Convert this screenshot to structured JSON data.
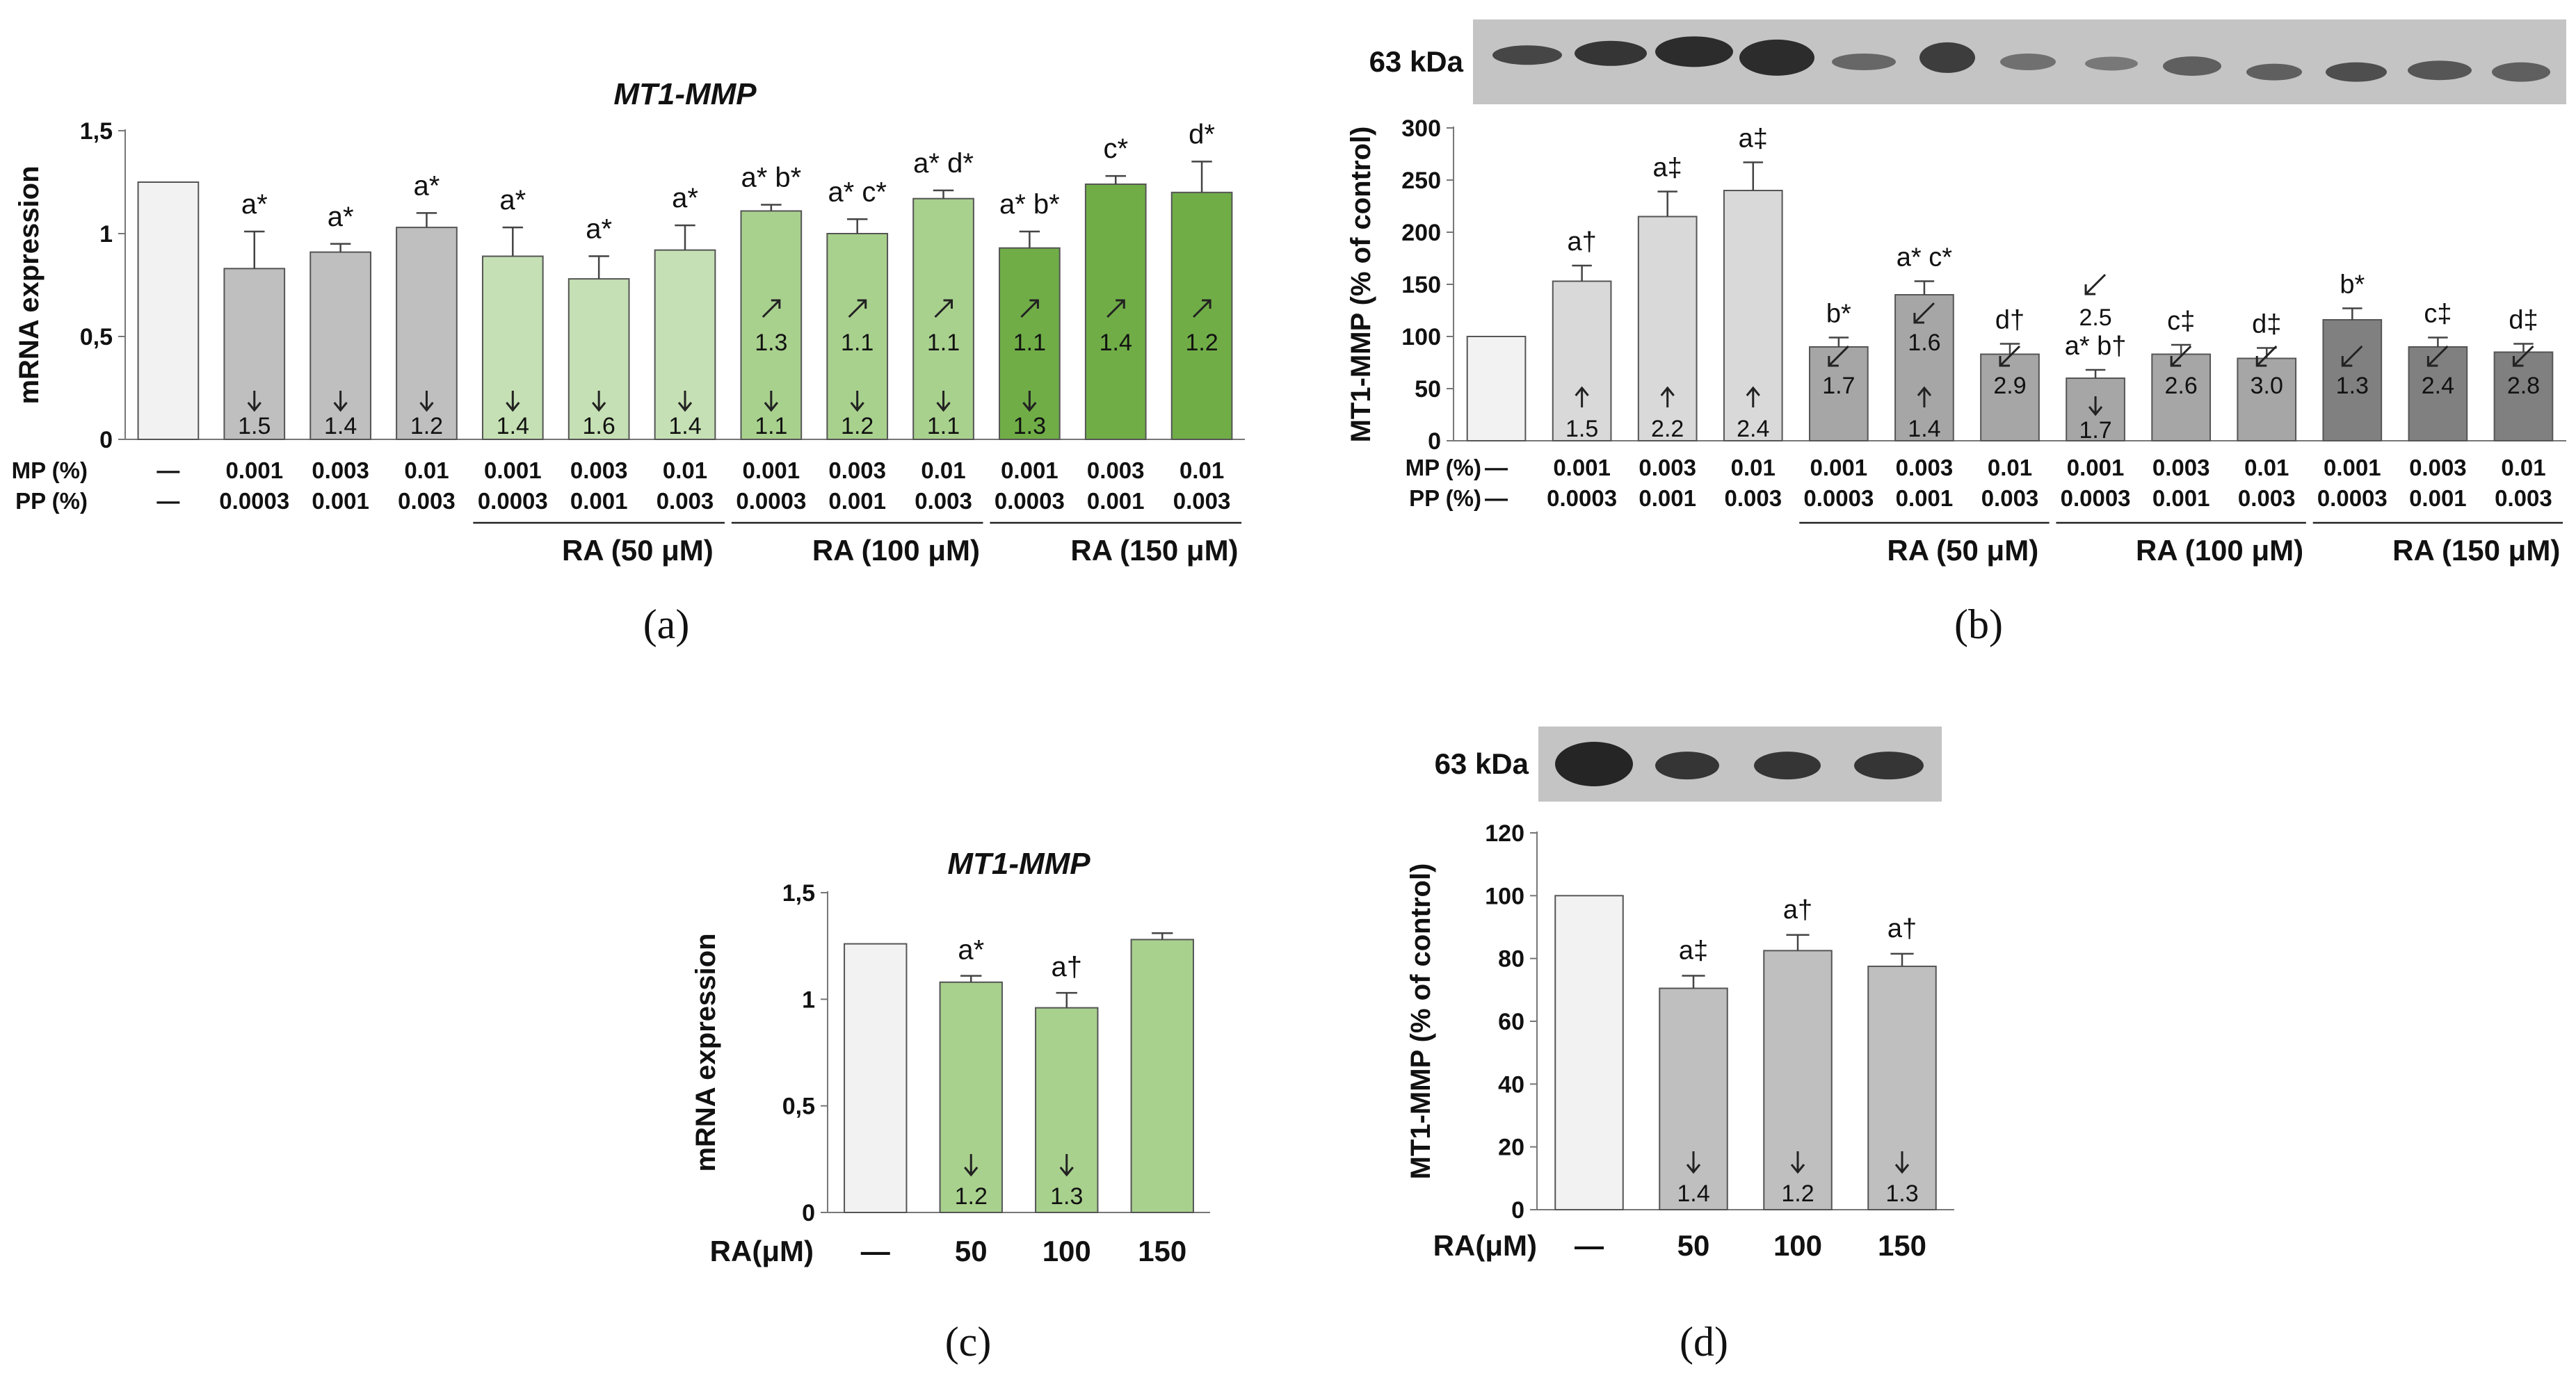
{
  "colors": {
    "control": "#f2f2f2",
    "grey": "#bfbfbf",
    "light_green": "#c5e0b4",
    "mid_green": "#a9d18e",
    "dark_green": "#70ad47",
    "light_grey": "#d9d9d9",
    "mid_grey": "#a6a6a6",
    "dark_grey": "#808080",
    "outline": "#555555",
    "blot_bg": "#c4c4c4",
    "band": "#1c1c1c"
  },
  "chart_data": [
    {
      "panel": "a",
      "type": "bar",
      "title": "MT1-MMP",
      "ylabel": "mRNA expression",
      "ylim": [
        0,
        1.5
      ],
      "yticks": [
        "0",
        "0,5",
        "1",
        "1,5"
      ],
      "categories": [
        "control",
        "MP 0.001 / PP 0.0003",
        "MP 0.003 / PP 0.001",
        "MP 0.01 / PP 0.003",
        "RA 50 + 0.001",
        "RA 50 + 0.003",
        "RA 50 + 0.01",
        "RA 100 + 0.001",
        "RA 100 + 0.003",
        "RA 100 + 0.01",
        "RA 150 + 0.001",
        "RA 150 + 0.003",
        "RA 150 + 0.01"
      ],
      "values": [
        1.25,
        0.83,
        0.91,
        1.03,
        0.89,
        0.78,
        0.92,
        1.11,
        1.0,
        1.17,
        0.93,
        1.24,
        1.2
      ],
      "errors": [
        0,
        0.18,
        0.04,
        0.07,
        0.14,
        0.11,
        0.12,
        0.03,
        0.07,
        0.04,
        0.08,
        0.04,
        0.15
      ],
      "colors": [
        "control",
        "grey",
        "grey",
        "grey",
        "light_green",
        "light_green",
        "light_green",
        "mid_green",
        "mid_green",
        "mid_green",
        "dark_green",
        "dark_green",
        "dark_green"
      ],
      "sig": [
        "",
        "a*",
        "a*",
        "a*",
        "a*",
        "a*",
        "a*",
        "a* b*",
        "a* c*",
        "a* d*",
        "a* b*",
        "c*",
        "d*"
      ],
      "fold_down": [
        "",
        "1.5",
        "1.4",
        "1.2",
        "1.4",
        "1.6",
        "1.4",
        "1.1",
        "1.2",
        "1.1",
        "1.3",
        "",
        ""
      ],
      "fold_up": [
        "",
        "",
        "",
        "",
        "",
        "",
        "",
        "1.3",
        "1.1",
        "1.1",
        "1.1",
        "1.4",
        "1.2"
      ],
      "rows": [
        {
          "label": "MP (%)",
          "values": [
            "—",
            "0.001",
            "0.003",
            "0.01",
            "0.001",
            "0.003",
            "0.01",
            "0.001",
            "0.003",
            "0.01",
            "0.001",
            "0.003",
            "0.01"
          ]
        },
        {
          "label": "PP (%)",
          "values": [
            "—",
            "0.0003",
            "0.001",
            "0.003",
            "0.0003",
            "0.001",
            "0.003",
            "0.0003",
            "0.001",
            "0.003",
            "0.0003",
            "0.001",
            "0.003"
          ]
        }
      ],
      "groups": [
        "RA (50 μM)",
        "RA (100 μM)",
        "RA (150 μM)"
      ],
      "panel_label": "(a)"
    },
    {
      "panel": "b",
      "type": "bar",
      "ylabel": "MT1-MMP (% of control)",
      "ylim": [
        0,
        300
      ],
      "yticks": [
        "0",
        "50",
        "100",
        "150",
        "200",
        "250",
        "300"
      ],
      "blot_label": "63 kDa",
      "categories": [
        "control",
        "MP 0.001 / PP 0.0003",
        "MP 0.003 / PP 0.001",
        "MP 0.01 / PP 0.003",
        "RA 50 + 0.001",
        "RA 50 + 0.003",
        "RA 50 + 0.01",
        "RA 100 + 0.001",
        "RA 100 + 0.003",
        "RA 100 + 0.01",
        "RA 150 + 0.001",
        "RA 150 + 0.003",
        "RA 150 + 0.01"
      ],
      "values": [
        100,
        153,
        215,
        240,
        90,
        140,
        83,
        60,
        83,
        79,
        116,
        90,
        85
      ],
      "errors": [
        0,
        15,
        24,
        27,
        9,
        13,
        10,
        8,
        9,
        10,
        11,
        9,
        8
      ],
      "colors": [
        "control",
        "light_grey",
        "light_grey",
        "light_grey",
        "mid_grey",
        "mid_grey",
        "mid_grey",
        "mid_grey",
        "mid_grey",
        "mid_grey",
        "dark_grey",
        "dark_grey",
        "dark_grey"
      ],
      "sig": [
        "",
        "a†",
        "a‡",
        "a‡",
        "b*",
        "a* c*",
        "d†",
        "a* b†",
        "c‡",
        "d‡",
        "b*",
        "c‡",
        "d‡"
      ],
      "fold_up": [
        "",
        "1.5",
        "2.2",
        "2.4",
        "",
        "1.4",
        "",
        "",
        "",
        "",
        "",
        "",
        ""
      ],
      "fold_down": [
        "",
        "",
        "",
        "",
        "",
        "",
        "",
        "1.7",
        "",
        "",
        "",
        "",
        ""
      ],
      "fold_diag": [
        "",
        "",
        "",
        "",
        "1.7",
        "1.6",
        "2.9",
        "2.5",
        "2.6",
        "3.0",
        "1.3",
        "2.4",
        "2.8"
      ],
      "rows": [
        {
          "label": "MP (%)",
          "values": [
            "—",
            "0.001",
            "0.003",
            "0.01",
            "0.001",
            "0.003",
            "0.01",
            "0.001",
            "0.003",
            "0.01",
            "0.001",
            "0.003",
            "0.01"
          ]
        },
        {
          "label": "PP (%)",
          "values": [
            "—",
            "0.0003",
            "0.001",
            "0.003",
            "0.0003",
            "0.001",
            "0.003",
            "0.0003",
            "0.001",
            "0.003",
            "0.0003",
            "0.001",
            "0.003"
          ]
        }
      ],
      "groups": [
        "RA (50 μM)",
        "RA (100 μM)",
        "RA (150 μM)"
      ],
      "panel_label": "(b)"
    },
    {
      "panel": "c",
      "type": "bar",
      "title": "MT1-MMP",
      "ylabel": "mRNA expression",
      "ylim": [
        0,
        1.5
      ],
      "yticks": [
        "0",
        "0,5",
        "1",
        "1,5"
      ],
      "categories": [
        "—",
        "50",
        "100",
        "150"
      ],
      "values": [
        1.26,
        1.08,
        0.96,
        1.28
      ],
      "errors": [
        0,
        0.03,
        0.07,
        0.03
      ],
      "colors": [
        "control",
        "mid_green",
        "mid_green",
        "mid_green"
      ],
      "sig": [
        "",
        "a*",
        "a†",
        ""
      ],
      "fold_down": [
        "",
        "1.2",
        "1.3",
        ""
      ],
      "xprefix": "RA(μM)",
      "panel_label": "(c)"
    },
    {
      "panel": "d",
      "type": "bar",
      "ylabel": "MT1-MMP (% of control)",
      "ylim": [
        0,
        120
      ],
      "yticks": [
        "0",
        "20",
        "40",
        "60",
        "80",
        "100",
        "120"
      ],
      "blot_label": "63 kDa",
      "categories": [
        "—",
        "50",
        "100",
        "150"
      ],
      "values": [
        100,
        70.5,
        82.5,
        77.5
      ],
      "errors": [
        0,
        4,
        5,
        4
      ],
      "colors": [
        "control",
        "grey",
        "grey",
        "grey"
      ],
      "sig": [
        "",
        "a‡",
        "a†",
        "a†"
      ],
      "fold_down": [
        "",
        "1.4",
        "1.2",
        "1.3"
      ],
      "xprefix": "RA(μM)",
      "panel_label": "(d)"
    }
  ]
}
